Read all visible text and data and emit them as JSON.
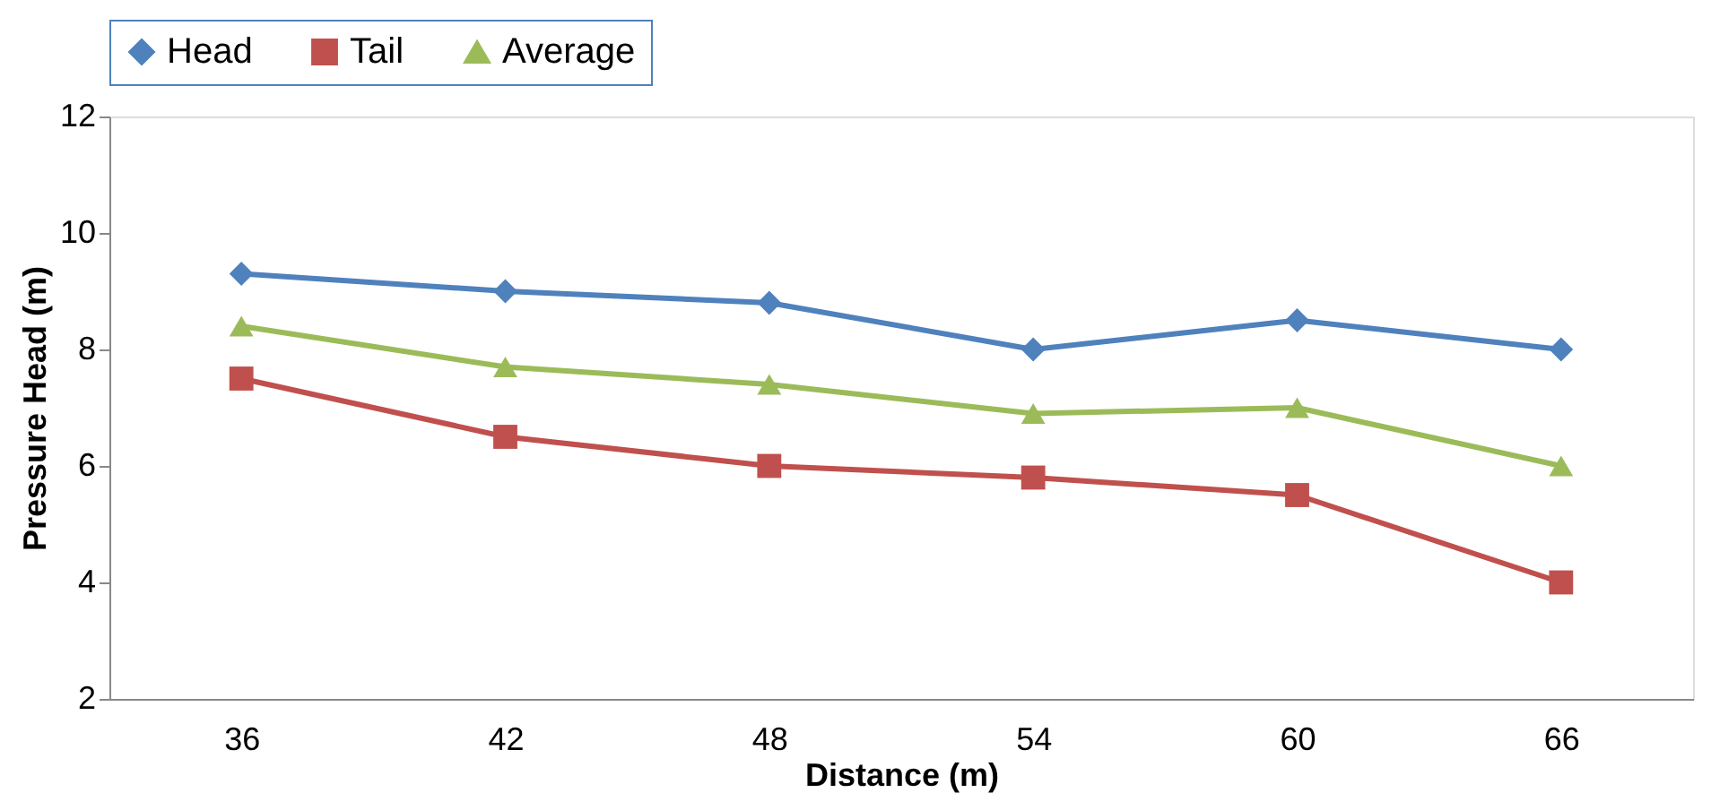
{
  "chart_data": {
    "type": "line",
    "xlabel": "Distance (m)",
    "ylabel": "Pressure Head (m)",
    "categories": [
      "36",
      "42",
      "48",
      "54",
      "60",
      "66"
    ],
    "series": [
      {
        "name": "Head",
        "color": "#4f81bd",
        "marker": "diamond",
        "values": [
          9.3,
          9.0,
          8.8,
          8.0,
          8.5,
          8.0
        ]
      },
      {
        "name": "Tail",
        "color": "#c0504d",
        "marker": "square",
        "values": [
          7.5,
          6.5,
          6.0,
          5.8,
          5.5,
          4.0
        ]
      },
      {
        "name": "Average",
        "color": "#9bbb59",
        "marker": "triangle",
        "values": [
          8.4,
          7.7,
          7.4,
          6.9,
          7.0,
          6.0
        ]
      }
    ],
    "ylim": [
      2,
      12
    ],
    "yticks": [
      2,
      4,
      6,
      8,
      10,
      12
    ],
    "grid": false,
    "legend": "top",
    "line_style": "solid"
  }
}
